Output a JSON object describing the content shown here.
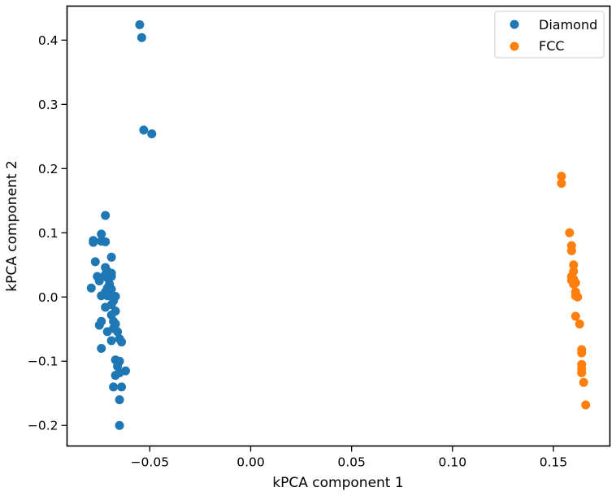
{
  "chart_data": {
    "type": "scatter",
    "xlabel": "kPCA component 1",
    "ylabel": "kPCA component 2",
    "xlim": [
      -0.091,
      0.178
    ],
    "ylim": [
      -0.232,
      0.453
    ],
    "xticks": [
      -0.05,
      0.0,
      0.05,
      0.1,
      0.15
    ],
    "xtick_labels": [
      "−0.05",
      "0.00",
      "0.05",
      "0.10",
      "0.15"
    ],
    "yticks": [
      -0.2,
      -0.1,
      0.0,
      0.1,
      0.2,
      0.3,
      0.4
    ],
    "ytick_labels": [
      "−0.2",
      "−0.1",
      "0.0",
      "0.1",
      "0.2",
      "0.3",
      "0.4"
    ],
    "grid": false,
    "legend_position": "top-right",
    "series": [
      {
        "name": "Diamond",
        "color": "#1f77b4",
        "points": [
          [
            -0.055,
            0.424
          ],
          [
            -0.054,
            0.404
          ],
          [
            -0.053,
            0.26
          ],
          [
            -0.049,
            0.254
          ],
          [
            -0.072,
            0.127
          ],
          [
            -0.074,
            0.098
          ],
          [
            -0.078,
            0.088
          ],
          [
            -0.078,
            0.085
          ],
          [
            -0.072,
            0.086
          ],
          [
            -0.074,
            0.087
          ],
          [
            -0.069,
            0.062
          ],
          [
            -0.077,
            0.055
          ],
          [
            -0.072,
            0.046
          ],
          [
            -0.071,
            0.04
          ],
          [
            -0.069,
            0.037
          ],
          [
            -0.072,
            0.035
          ],
          [
            -0.076,
            0.032
          ],
          [
            -0.069,
            0.032
          ],
          [
            -0.071,
            0.03
          ],
          [
            -0.075,
            0.025
          ],
          [
            -0.07,
            0.02
          ],
          [
            -0.071,
            0.014
          ],
          [
            -0.069,
            0.012
          ],
          [
            -0.079,
            0.014
          ],
          [
            -0.072,
            0.008
          ],
          [
            -0.07,
            0.006
          ],
          [
            -0.074,
            0.002
          ],
          [
            -0.071,
            0.002
          ],
          [
            -0.067,
            0.001
          ],
          [
            -0.068,
            -0.006
          ],
          [
            -0.072,
            -0.016
          ],
          [
            -0.069,
            -0.012
          ],
          [
            -0.067,
            -0.022
          ],
          [
            -0.069,
            -0.028
          ],
          [
            -0.074,
            -0.038
          ],
          [
            -0.075,
            -0.044
          ],
          [
            -0.068,
            -0.038
          ],
          [
            -0.067,
            -0.042
          ],
          [
            -0.071,
            -0.054
          ],
          [
            -0.068,
            -0.049
          ],
          [
            -0.066,
            -0.054
          ],
          [
            -0.065,
            -0.065
          ],
          [
            -0.064,
            -0.07
          ],
          [
            -0.069,
            -0.068
          ],
          [
            -0.074,
            -0.08
          ],
          [
            -0.067,
            -0.098
          ],
          [
            -0.066,
            -0.1
          ],
          [
            -0.065,
            -0.1
          ],
          [
            -0.066,
            -0.108
          ],
          [
            -0.062,
            -0.115
          ],
          [
            -0.065,
            -0.118
          ],
          [
            -0.067,
            -0.122
          ],
          [
            -0.064,
            -0.14
          ],
          [
            -0.068,
            -0.14
          ],
          [
            -0.065,
            -0.16
          ],
          [
            -0.065,
            -0.2
          ]
        ]
      },
      {
        "name": "FCC",
        "color": "#ff7f0e",
        "points": [
          [
            0.154,
            0.188
          ],
          [
            0.154,
            0.177
          ],
          [
            0.158,
            0.1
          ],
          [
            0.159,
            0.08
          ],
          [
            0.159,
            0.072
          ],
          [
            0.16,
            0.05
          ],
          [
            0.16,
            0.04
          ],
          [
            0.159,
            0.032
          ],
          [
            0.16,
            0.028
          ],
          [
            0.159,
            0.026
          ],
          [
            0.161,
            0.022
          ],
          [
            0.16,
            0.02
          ],
          [
            0.161,
            0.008
          ],
          [
            0.161,
            0.002
          ],
          [
            0.162,
            0.0
          ],
          [
            0.161,
            -0.03
          ],
          [
            0.163,
            -0.042
          ],
          [
            0.164,
            -0.082
          ],
          [
            0.164,
            -0.087
          ],
          [
            0.164,
            -0.105
          ],
          [
            0.164,
            -0.112
          ],
          [
            0.164,
            -0.118
          ],
          [
            0.165,
            -0.133
          ],
          [
            0.166,
            -0.168
          ]
        ]
      }
    ]
  }
}
